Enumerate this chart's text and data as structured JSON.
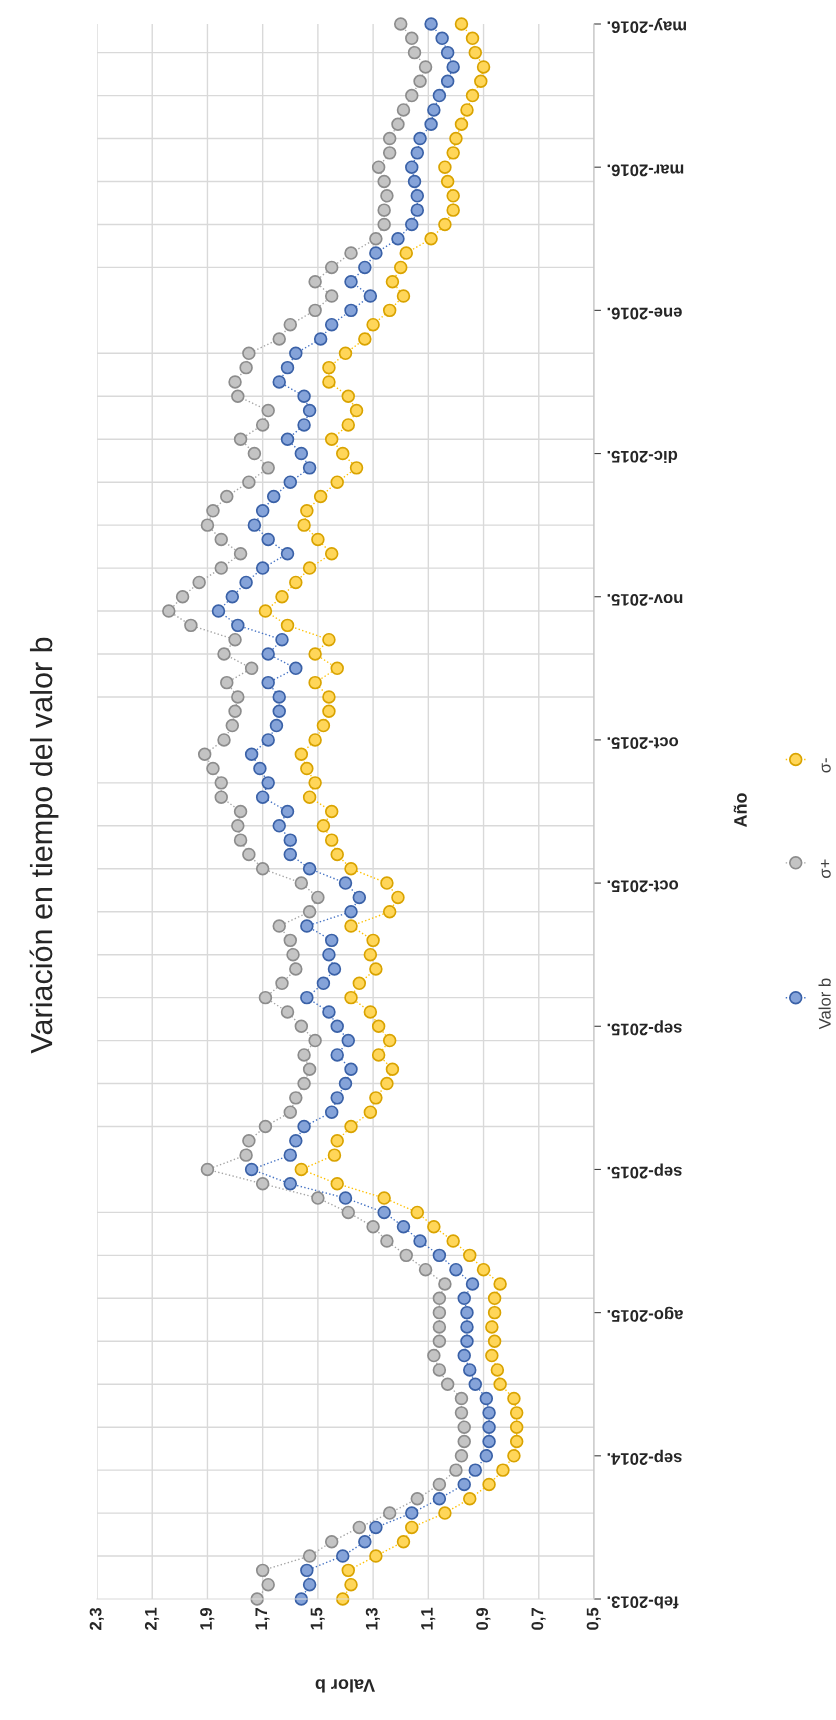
{
  "chart_data": {
    "type": "line",
    "orientation": "horizontal",
    "title": "Variación en tiempo del valor b",
    "xlabel": "Valor b",
    "ylabel": "Año",
    "categories": [
      "may-2016.",
      null,
      null,
      null,
      null,
      null,
      null,
      null,
      null,
      null,
      "mar-2016.",
      null,
      null,
      null,
      null,
      null,
      null,
      null,
      null,
      null,
      "ene-2016.",
      null,
      null,
      null,
      null,
      null,
      null,
      null,
      null,
      null,
      "dic-2015.",
      null,
      null,
      null,
      null,
      null,
      null,
      null,
      null,
      null,
      "nov-2015.",
      null,
      null,
      null,
      null,
      null,
      null,
      null,
      null,
      null,
      "oct-2015.",
      null,
      null,
      null,
      null,
      null,
      null,
      null,
      null,
      null,
      "oct-2015.",
      null,
      null,
      null,
      null,
      null,
      null,
      null,
      null,
      null,
      "sep-2015.",
      null,
      null,
      null,
      null,
      null,
      null,
      null,
      null,
      null,
      "sep-2015.",
      null,
      null,
      null,
      null,
      null,
      null,
      null,
      null,
      null,
      "ago-2015.",
      null,
      null,
      null,
      null,
      null,
      null,
      null,
      null,
      null,
      "sep-2014.",
      null,
      null,
      null,
      null,
      null,
      null,
      null,
      null,
      null,
      "feb-2013."
    ],
    "series": [
      {
        "name": "Valor b",
        "color": "#4472c4",
        "values": [
          1.09,
          1.05,
          1.03,
          1.01,
          1.03,
          1.06,
          1.08,
          1.09,
          1.13,
          1.14,
          1.16,
          1.15,
          1.14,
          1.14,
          1.16,
          1.21,
          1.29,
          1.33,
          1.38,
          1.31,
          1.38,
          1.45,
          1.49,
          1.58,
          1.61,
          1.64,
          1.55,
          1.53,
          1.55,
          1.61,
          1.56,
          1.53,
          1.6,
          1.66,
          1.7,
          1.73,
          1.68,
          1.61,
          1.7,
          1.76,
          1.81,
          1.86,
          1.79,
          1.63,
          1.68,
          1.58,
          1.68,
          1.64,
          1.64,
          1.65,
          1.68,
          1.74,
          1.71,
          1.68,
          1.7,
          1.61,
          1.64,
          1.6,
          1.6,
          1.53,
          1.4,
          1.35,
          1.38,
          1.54,
          1.45,
          1.46,
          1.44,
          1.48,
          1.54,
          1.46,
          1.43,
          1.39,
          1.43,
          1.38,
          1.4,
          1.43,
          1.45,
          1.55,
          1.58,
          1.6,
          1.74,
          1.6,
          1.4,
          1.26,
          1.19,
          1.13,
          1.06,
          1.0,
          0.94,
          0.97,
          0.96,
          0.96,
          0.96,
          0.97,
          0.95,
          0.93,
          0.89,
          0.88,
          0.88,
          0.88,
          0.89,
          0.93,
          0.97,
          1.06,
          1.16,
          1.29,
          1.33,
          1.41,
          1.54,
          1.53,
          1.56
        ]
      },
      {
        "name": "σ+",
        "color": "#a5a5a5",
        "values": [
          1.2,
          1.16,
          1.15,
          1.11,
          1.13,
          1.16,
          1.19,
          1.21,
          1.24,
          1.24,
          1.28,
          1.26,
          1.25,
          1.26,
          1.26,
          1.29,
          1.38,
          1.45,
          1.51,
          1.45,
          1.51,
          1.6,
          1.64,
          1.75,
          1.76,
          1.8,
          1.79,
          1.68,
          1.7,
          1.78,
          1.73,
          1.68,
          1.75,
          1.83,
          1.88,
          1.9,
          1.85,
          1.78,
          1.85,
          1.93,
          1.99,
          2.04,
          1.96,
          1.8,
          1.84,
          1.74,
          1.83,
          1.79,
          1.8,
          1.81,
          1.84,
          1.91,
          1.88,
          1.85,
          1.85,
          1.78,
          1.79,
          1.78,
          1.75,
          1.7,
          1.56,
          1.5,
          1.53,
          1.64,
          1.6,
          1.59,
          1.58,
          1.63,
          1.69,
          1.61,
          1.56,
          1.51,
          1.55,
          1.53,
          1.55,
          1.58,
          1.6,
          1.69,
          1.75,
          1.76,
          1.9,
          1.7,
          1.5,
          1.39,
          1.3,
          1.25,
          1.18,
          1.11,
          1.04,
          1.06,
          1.06,
          1.06,
          1.06,
          1.08,
          1.06,
          1.03,
          0.98,
          0.98,
          0.97,
          0.97,
          0.98,
          1.0,
          1.06,
          1.14,
          1.24,
          1.35,
          1.45,
          1.53,
          1.7,
          1.68,
          1.72
        ]
      },
      {
        "name": "σ-",
        "color": "#ffc000",
        "values": [
          0.98,
          0.94,
          0.93,
          0.9,
          0.91,
          0.94,
          0.96,
          0.98,
          1.0,
          1.01,
          1.04,
          1.03,
          1.01,
          1.01,
          1.04,
          1.09,
          1.18,
          1.2,
          1.23,
          1.19,
          1.24,
          1.3,
          1.33,
          1.4,
          1.46,
          1.46,
          1.39,
          1.36,
          1.39,
          1.45,
          1.41,
          1.36,
          1.43,
          1.49,
          1.54,
          1.55,
          1.5,
          1.45,
          1.53,
          1.58,
          1.63,
          1.69,
          1.61,
          1.46,
          1.51,
          1.43,
          1.51,
          1.46,
          1.46,
          1.48,
          1.51,
          1.56,
          1.54,
          1.51,
          1.53,
          1.45,
          1.48,
          1.45,
          1.43,
          1.38,
          1.25,
          1.21,
          1.24,
          1.38,
          1.3,
          1.31,
          1.29,
          1.35,
          1.38,
          1.31,
          1.28,
          1.24,
          1.28,
          1.23,
          1.25,
          1.29,
          1.31,
          1.38,
          1.43,
          1.44,
          1.56,
          1.43,
          1.26,
          1.14,
          1.08,
          1.01,
          0.95,
          0.9,
          0.84,
          0.86,
          0.86,
          0.87,
          0.86,
          0.87,
          0.85,
          0.84,
          0.79,
          0.78,
          0.78,
          0.78,
          0.79,
          0.83,
          0.88,
          0.95,
          1.04,
          1.16,
          1.19,
          1.29,
          1.39,
          1.38,
          1.41
        ]
      }
    ],
    "xlim": [
      2.3,
      0.5
    ],
    "xticks": [
      {
        "value": 2.3,
        "label": "2,3"
      },
      {
        "value": 2.1,
        "label": "2,1"
      },
      {
        "value": 1.9,
        "label": "1,9"
      },
      {
        "value": 1.7,
        "label": "1,7"
      },
      {
        "value": 1.5,
        "label": "1,5"
      },
      {
        "value": 1.3,
        "label": "1,3"
      },
      {
        "value": 1.1,
        "label": "1,1"
      },
      {
        "value": 0.9,
        "label": "0,9"
      },
      {
        "value": 0.7,
        "label": "0,7"
      },
      {
        "value": 0.5,
        "label": "0,5"
      }
    ],
    "grid": true,
    "legend": "right",
    "marker": "circle",
    "line_style": "dotted"
  }
}
